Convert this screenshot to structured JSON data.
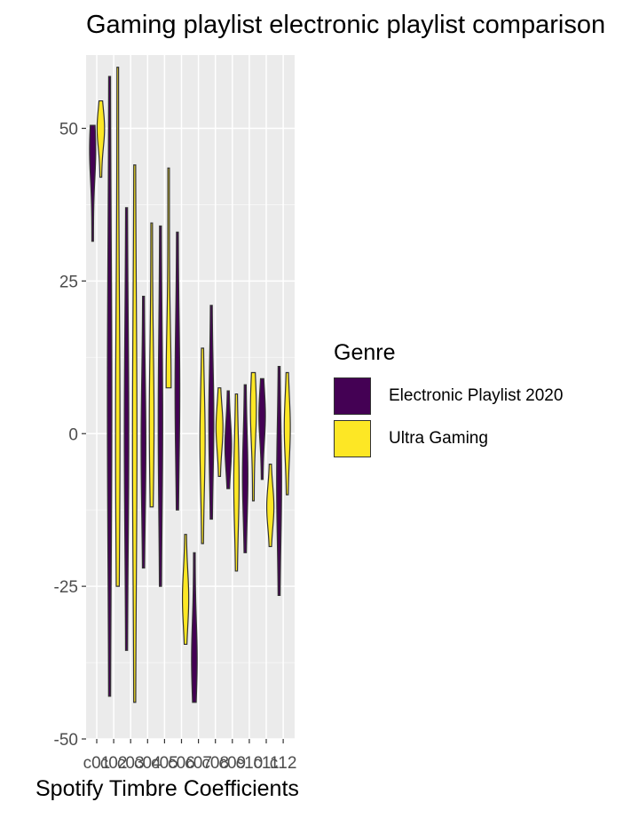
{
  "chart_data": {
    "type": "violin",
    "title": "Gaming playlist electronic playlist comparison",
    "xlabel": "Spotify Timbre Coefficients",
    "ylabel": "",
    "ylim": [
      -50,
      62
    ],
    "yticks": [
      -50,
      -25,
      0,
      25,
      50
    ],
    "categories": [
      "c01",
      "c02",
      "c03",
      "c04",
      "c05",
      "c06",
      "c07",
      "c08",
      "c09",
      "c10",
      "c11",
      "c12"
    ],
    "grid": true,
    "legend_position": "right",
    "legend_title": "Genre",
    "series": [
      {
        "name": "Electronic Playlist 2020",
        "color": "#440154",
        "ranges": [
          [
            31.5,
            50.5
          ],
          [
            -43,
            58.5
          ],
          [
            -35.5,
            37
          ],
          [
            -22,
            22.5
          ],
          [
            -25,
            34
          ],
          [
            -12.5,
            33
          ],
          [
            -44,
            -19.5
          ],
          [
            -14,
            21
          ],
          [
            -9,
            7
          ],
          [
            -19.5,
            8
          ],
          [
            -7.5,
            9
          ],
          [
            -26.5,
            11
          ]
        ],
        "centers": [
          46.5,
          5,
          0,
          -2,
          2,
          7,
          -37,
          2,
          -2,
          -7,
          3,
          -8
        ]
      },
      {
        "name": "Ultra Gaming",
        "color": "#fde725",
        "ranges": [
          [
            42,
            54.5
          ],
          [
            -25,
            60
          ],
          [
            -44,
            44
          ],
          [
            -12,
            34.5
          ],
          [
            7.5,
            43.5
          ],
          [
            -34.5,
            -16.5
          ],
          [
            -18,
            14
          ],
          [
            -7,
            7.5
          ],
          [
            -22.5,
            6.5
          ],
          [
            -11,
            10
          ],
          [
            -18.5,
            -5
          ],
          [
            -10,
            10
          ]
        ],
        "centers": [
          50,
          0,
          -1,
          2,
          8,
          -27,
          -1,
          1,
          -8,
          4,
          -12,
          1
        ]
      }
    ]
  }
}
